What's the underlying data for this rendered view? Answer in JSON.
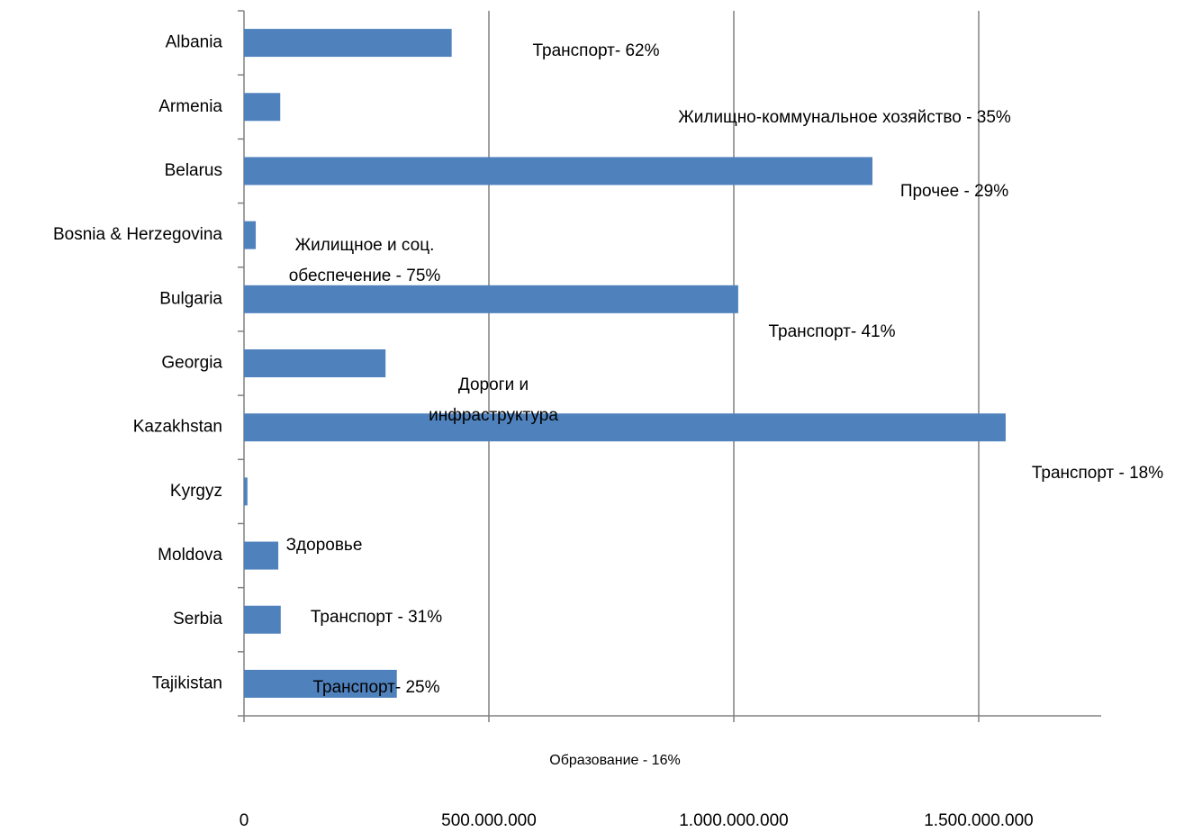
{
  "chart_data": {
    "type": "barh",
    "categories": [
      "Albania",
      "Armenia",
      "Belarus",
      "Bosnia & Herzegovina",
      "Bulgaria",
      "Georgia",
      "Kazakhstan",
      "Kyrgyz",
      "Moldova",
      "Serbia",
      "Tajikistan"
    ],
    "values": [
      424000000,
      74000000,
      1283000000,
      24000000,
      1009000000,
      289000000,
      1555000000,
      7000000,
      70000000,
      75000000,
      312000000
    ],
    "color": "#4f81bd",
    "xlim": [
      0,
      1750000000
    ],
    "xticks": [
      0,
      {
        "value": 500000000,
        "label": "500.000.000"
      },
      {
        "value": 1000000000,
        "label": "1.000.000.000"
      },
      {
        "value": 1500000000,
        "label": "1.500.000.000"
      }
    ],
    "grid": true,
    "annotations": [
      [
        "Транспорт- 62%"
      ],
      [
        "Жилищно-коммунальное хозяйство - 35%"
      ],
      [
        "Прочее - 29%"
      ],
      [
        "Жилищное и соц.",
        "обеспечение - 75%"
      ],
      [
        "Транспорт- 41%"
      ],
      [
        "Дороги и",
        "инфраструктура"
      ],
      [
        "Транспорт - 18%"
      ],
      [
        "Здоровье"
      ],
      [
        "Транспорт - 31%"
      ],
      [
        "Транспорт- 25%"
      ],
      [
        "Образование - 16%"
      ]
    ]
  }
}
